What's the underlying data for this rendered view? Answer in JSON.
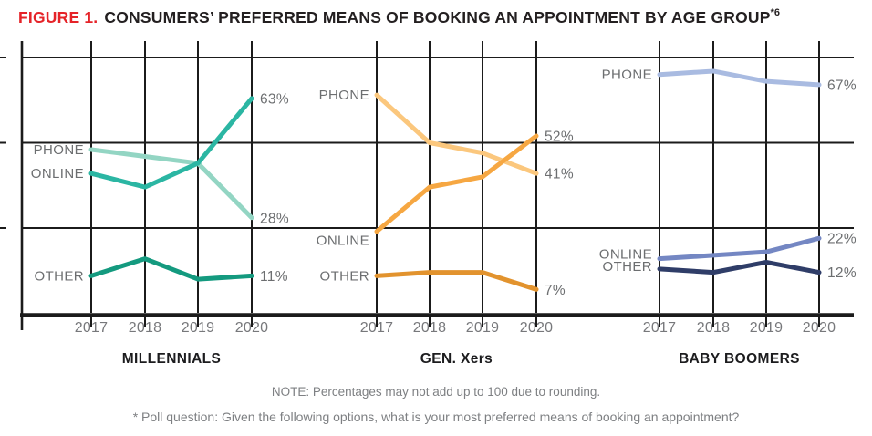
{
  "figure": {
    "label": "FIGURE 1.",
    "label_color": "#e52328",
    "title": "CONSUMERS’ PREFERRED MEANS OF BOOKING AN APPOINTMENT BY AGE GROUP",
    "superscript": "*6"
  },
  "notes": {
    "rounding": "NOTE: Percentages may not add up to 100 due to rounding.",
    "poll": "* Poll question: Given the following options, what is your most preferred means of booking an appointment?"
  },
  "chart_data": {
    "type": "line",
    "x_labels": [
      "2017",
      "2018",
      "2019",
      "2020"
    ],
    "ylim": [
      0,
      75
    ],
    "gridlines": [
      25,
      50,
      75
    ],
    "grid": true,
    "unit": "%",
    "legend_position": "inline-left",
    "panels": [
      {
        "title": "MILLENNIALS",
        "series": [
          {
            "name": "PHONE",
            "color": "#93d5c3",
            "values": [
              48,
              46,
              44,
              28
            ],
            "end_label": "28%"
          },
          {
            "name": "ONLINE",
            "color": "#2bb6a3",
            "values": [
              41,
              37,
              44,
              63
            ],
            "end_label": "63%"
          },
          {
            "name": "OTHER",
            "color": "#149a7f",
            "values": [
              11,
              16,
              10,
              11
            ],
            "end_label": "11%"
          }
        ]
      },
      {
        "title": "GEN. Xers",
        "series": [
          {
            "name": "PHONE",
            "color": "#fbc77d",
            "values": [
              64,
              50,
              47,
              41
            ],
            "end_label": "41%"
          },
          {
            "name": "ONLINE",
            "color": "#f6a742",
            "values": [
              24,
              37,
              40,
              52
            ],
            "end_label": "52%",
            "name_label_dy": 10
          },
          {
            "name": "OTHER",
            "color": "#e2932e",
            "values": [
              11,
              12,
              12,
              7
            ],
            "end_label": "7%"
          }
        ]
      },
      {
        "title": "BABY BOOMERS",
        "series": [
          {
            "name": "PHONE",
            "color": "#a9bbe1",
            "values": [
              70,
              71,
              68,
              67
            ],
            "end_label": "67%"
          },
          {
            "name": "ONLINE",
            "color": "#7487c3",
            "values": [
              16,
              17,
              18,
              22
            ],
            "end_label": "22%",
            "name_label_dy": -5
          },
          {
            "name": "OTHER",
            "color": "#2f3d68",
            "values": [
              13,
              12,
              15,
              12
            ],
            "end_label": "12%",
            "name_label_dy": -3
          }
        ]
      }
    ]
  }
}
